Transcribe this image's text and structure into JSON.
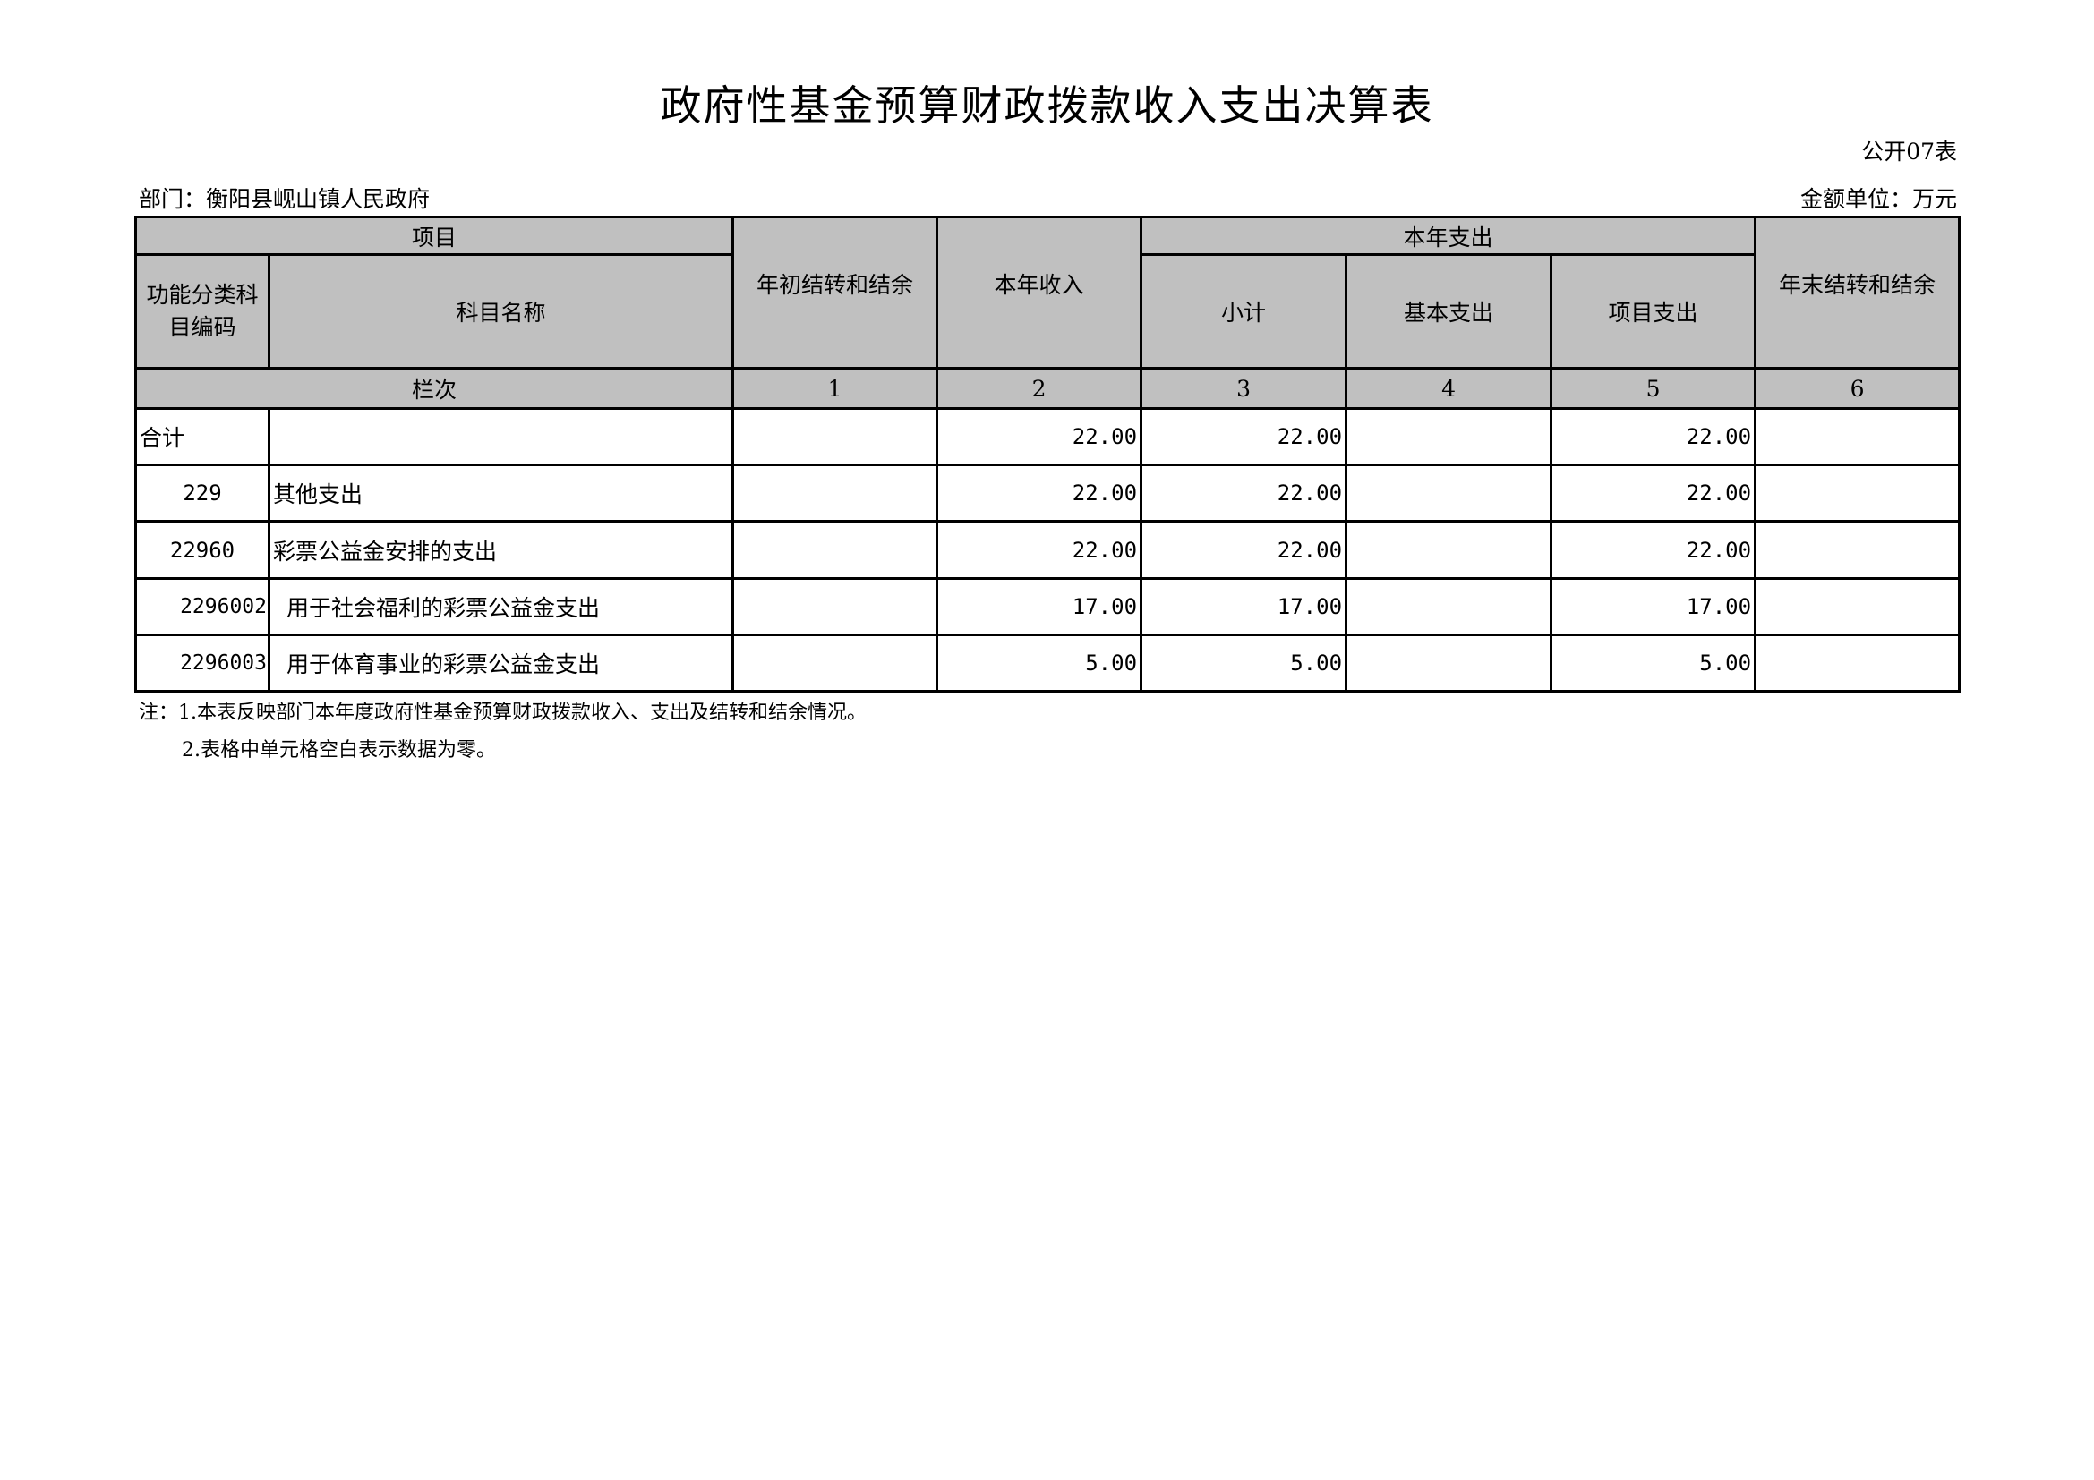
{
  "title": "政府性基金预算财政拨款收入支出决算表",
  "table_code": "公开07表",
  "department": "部门：衡阳县岘山镇人民政府",
  "unit": "金额单位：万元",
  "header": {
    "item": "项目",
    "func_code": "功能分类科目编码",
    "subject_name": "科目名称",
    "begin_balance": "年初结转和结余",
    "income": "本年收入",
    "expense": "本年支出",
    "subtotal": "小计",
    "basic": "基本支出",
    "project": "项目支出",
    "end_balance": "年末结转和结余",
    "column_index": "栏次",
    "col_nums": [
      "1",
      "2",
      "3",
      "4",
      "5",
      "6"
    ]
  },
  "rows": [
    {
      "code": "合计",
      "name": "",
      "c1": "",
      "c2": "22.00",
      "c3": "22.00",
      "c4": "",
      "c5": "22.00",
      "c6": ""
    },
    {
      "code": "229",
      "name": "其他支出",
      "c1": "",
      "c2": "22.00",
      "c3": "22.00",
      "c4": "",
      "c5": "22.00",
      "c6": ""
    },
    {
      "code": "22960",
      "name": "彩票公益金安排的支出",
      "c1": "",
      "c2": "22.00",
      "c3": "22.00",
      "c4": "",
      "c5": "22.00",
      "c6": ""
    },
    {
      "code": "2296002",
      "name": "用于社会福利的彩票公益金支出",
      "c1": "",
      "c2": "17.00",
      "c3": "17.00",
      "c4": "",
      "c5": "17.00",
      "c6": ""
    },
    {
      "code": "2296003",
      "name": "用于体育事业的彩票公益金支出",
      "c1": "",
      "c2": "5.00",
      "c3": "5.00",
      "c4": "",
      "c5": "5.00",
      "c6": ""
    }
  ],
  "notes": [
    "注：1.本表反映部门本年度政府性基金预算财政拨款收入、支出及结转和结余情况。",
    "2.表格中单元格空白表示数据为零。"
  ]
}
